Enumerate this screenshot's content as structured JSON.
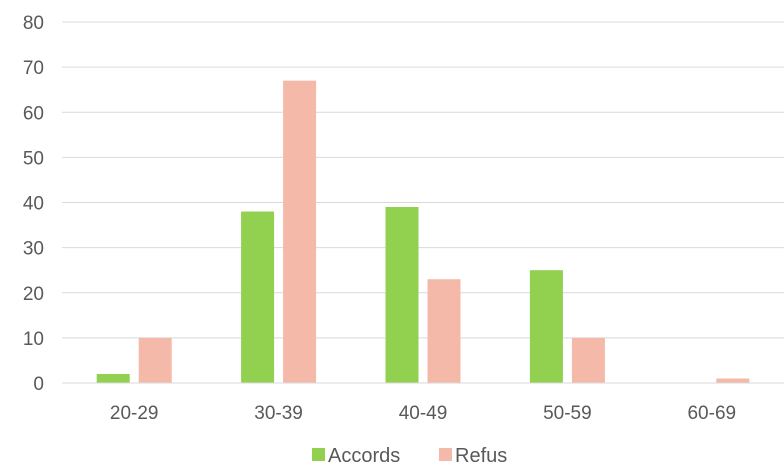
{
  "chart_data": {
    "type": "bar",
    "categories": [
      "20-29",
      "30-39",
      "40-49",
      "50-59",
      "60-69"
    ],
    "series": [
      {
        "name": "Accords",
        "values": [
          2,
          38,
          39,
          25,
          0
        ],
        "color": "#92d050"
      },
      {
        "name": "Refus",
        "values": [
          10,
          67,
          23,
          10,
          1
        ],
        "color": "#f4b9a8"
      }
    ],
    "ylim": [
      0,
      80
    ],
    "yticks": [
      "0",
      "10",
      "20",
      "30",
      "40",
      "50",
      "60",
      "70",
      "80"
    ],
    "grid": true,
    "legend_position": "bottom"
  }
}
